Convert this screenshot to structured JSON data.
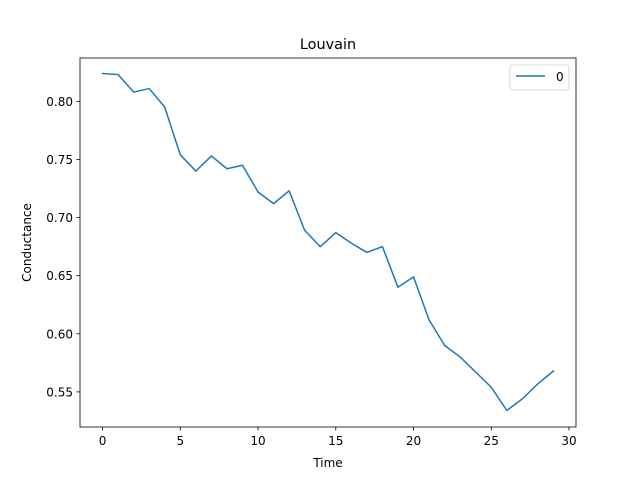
{
  "chart_data": {
    "type": "line",
    "title": "Louvain",
    "xlabel": "Time",
    "ylabel": "Conductance",
    "xlim": [
      -1.45,
      30.45
    ],
    "ylim": [
      0.5198,
      0.8373
    ],
    "xticks": [
      0,
      5,
      10,
      15,
      20,
      25,
      30
    ],
    "xtick_labels": [
      "0",
      "5",
      "10",
      "15",
      "20",
      "25",
      "30"
    ],
    "yticks": [
      0.55,
      0.6,
      0.65,
      0.7,
      0.75,
      0.8
    ],
    "ytick_labels": [
      "0.55",
      "0.60",
      "0.65",
      "0.70",
      "0.75",
      "0.80"
    ],
    "grid": false,
    "legend_position": "top-right",
    "series": [
      {
        "name": "0",
        "color": "#1f77b4",
        "x": [
          0,
          1,
          2,
          3,
          4,
          5,
          6,
          7,
          8,
          9,
          10,
          11,
          12,
          13,
          14,
          15,
          16,
          17,
          18,
          19,
          20,
          21,
          22,
          23,
          24,
          25,
          26,
          27,
          28,
          29
        ],
        "y": [
          0.824,
          0.823,
          0.808,
          0.811,
          0.795,
          0.754,
          0.74,
          0.753,
          0.742,
          0.745,
          0.722,
          0.712,
          0.723,
          0.689,
          0.675,
          0.687,
          0.678,
          0.67,
          0.675,
          0.64,
          0.649,
          0.612,
          0.59,
          0.58,
          0.567,
          0.554,
          0.534,
          0.544,
          0.557,
          0.568
        ]
      }
    ]
  }
}
